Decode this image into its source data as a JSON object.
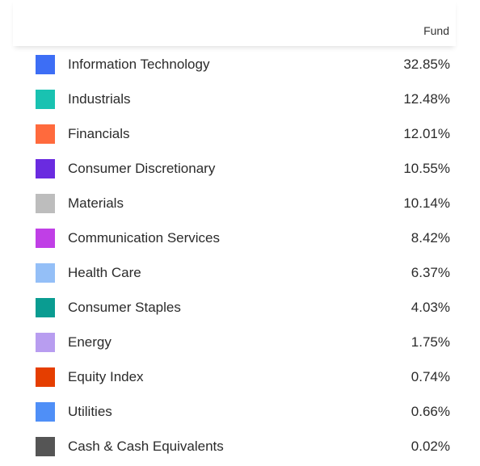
{
  "header": {
    "column_label": "Fund"
  },
  "sectors": [
    {
      "label": "Information Technology",
      "value": "32.85%",
      "color": "#3d6ef5"
    },
    {
      "label": "Industrials",
      "value": "12.48%",
      "color": "#19c2b1"
    },
    {
      "label": "Financials",
      "value": "12.01%",
      "color": "#ff6a3d"
    },
    {
      "label": "Consumer Discretionary",
      "value": "10.55%",
      "color": "#6a2be0"
    },
    {
      "label": "Materials",
      "value": "10.14%",
      "color": "#bdbdbd"
    },
    {
      "label": "Communication Services",
      "value": "8.42%",
      "color": "#c03fe6"
    },
    {
      "label": "Health Care",
      "value": "6.37%",
      "color": "#94bff7"
    },
    {
      "label": "Consumer Staples",
      "value": "4.03%",
      "color": "#0a9c91"
    },
    {
      "label": "Energy",
      "value": "1.75%",
      "color": "#b89df0"
    },
    {
      "label": "Equity Index",
      "value": "0.74%",
      "color": "#e53e00"
    },
    {
      "label": "Utilities",
      "value": "0.66%",
      "color": "#4f8ff7"
    },
    {
      "label": "Cash & Cash Equivalents",
      "value": "0.02%",
      "color": "#555555"
    }
  ]
}
